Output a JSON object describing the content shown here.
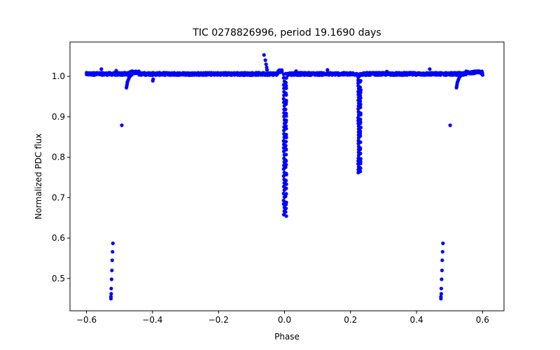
{
  "chart_data": {
    "type": "scatter",
    "title": "TIC 0278826996, period 19.1690 days",
    "xlabel": "Phase",
    "ylabel": "Normalized PDC flux",
    "xlim": [
      -0.65,
      0.665
    ],
    "ylim": [
      0.42,
      1.085
    ],
    "xticks": [
      -0.6,
      -0.4,
      -0.2,
      0.0,
      0.2,
      0.4,
      0.6
    ],
    "xtick_labels": [
      "−0.6",
      "−0.4",
      "−0.2",
      "0.0",
      "0.2",
      "0.4",
      "0.6"
    ],
    "yticks": [
      0.5,
      0.6,
      0.7,
      0.8,
      0.9,
      1.0
    ],
    "ytick_labels": [
      "0.5",
      "0.6",
      "0.7",
      "0.8",
      "0.9",
      "1.0"
    ],
    "grid": false,
    "marker_color": "#0000ff",
    "series": [
      {
        "name": "flux",
        "baseline": {
          "x_min": -0.6,
          "x_max": 0.6,
          "y": 1.006
        },
        "eclipses": [
          {
            "center": 0.0,
            "half_width": 0.007,
            "min_flux": 0.658
          },
          {
            "center": 0.228,
            "half_width": 0.006,
            "min_flux": 0.762
          },
          {
            "center": -0.517,
            "half_width": 0.004,
            "min_flux": 0.45
          },
          {
            "center": 0.483,
            "half_width": 0.004,
            "min_flux": 0.45
          }
        ],
        "points": [
          {
            "x": -0.52,
            "y": 0.587
          },
          {
            "x": -0.521,
            "y": 0.566
          },
          {
            "x": -0.522,
            "y": 0.545
          },
          {
            "x": -0.523,
            "y": 0.52
          },
          {
            "x": -0.524,
            "y": 0.498
          },
          {
            "x": -0.525,
            "y": 0.475
          },
          {
            "x": -0.525,
            "y": 0.462
          },
          {
            "x": -0.526,
            "y": 0.455
          },
          {
            "x": -0.526,
            "y": 0.45
          },
          {
            "x": 0.48,
            "y": 0.587
          },
          {
            "x": 0.479,
            "y": 0.566
          },
          {
            "x": 0.478,
            "y": 0.545
          },
          {
            "x": 0.477,
            "y": 0.52
          },
          {
            "x": 0.476,
            "y": 0.498
          },
          {
            "x": 0.475,
            "y": 0.475
          },
          {
            "x": 0.475,
            "y": 0.462
          },
          {
            "x": 0.474,
            "y": 0.455
          },
          {
            "x": 0.474,
            "y": 0.45
          },
          {
            "x": -0.493,
            "y": 0.879
          },
          {
            "x": 0.502,
            "y": 0.879
          },
          {
            "x": -0.062,
            "y": 1.053
          },
          {
            "x": -0.058,
            "y": 1.04
          },
          {
            "x": -0.056,
            "y": 1.03
          },
          {
            "x": -0.054,
            "y": 1.022
          },
          {
            "x": -0.053,
            "y": 1.016
          },
          {
            "x": -0.555,
            "y": 1.018
          },
          {
            "x": -0.51,
            "y": 1.014
          },
          {
            "x": 0.44,
            "y": 1.018
          },
          {
            "x": 0.13,
            "y": 1.016
          },
          {
            "x": 0.035,
            "y": 1.013
          },
          {
            "x": 0.31,
            "y": 1.012
          },
          {
            "x": -0.399,
            "y": 0.989
          },
          {
            "x": -0.398,
            "y": 0.993
          },
          {
            "x": -0.479,
            "y": 0.972
          },
          {
            "x": -0.478,
            "y": 0.976
          },
          {
            "x": -0.477,
            "y": 0.981
          },
          {
            "x": -0.476,
            "y": 0.986
          },
          {
            "x": -0.474,
            "y": 0.99
          },
          {
            "x": -0.472,
            "y": 0.994
          },
          {
            "x": -0.47,
            "y": 0.998
          },
          {
            "x": -0.467,
            "y": 1.001
          },
          {
            "x": -0.463,
            "y": 1.004
          },
          {
            "x": 0.521,
            "y": 0.972
          },
          {
            "x": 0.522,
            "y": 0.976
          },
          {
            "x": 0.523,
            "y": 0.981
          },
          {
            "x": 0.524,
            "y": 0.986
          },
          {
            "x": 0.526,
            "y": 0.99
          },
          {
            "x": 0.528,
            "y": 0.994
          },
          {
            "x": 0.53,
            "y": 0.998
          },
          {
            "x": 0.533,
            "y": 1.001
          },
          {
            "x": 0.537,
            "y": 1.004
          }
        ]
      }
    ]
  }
}
